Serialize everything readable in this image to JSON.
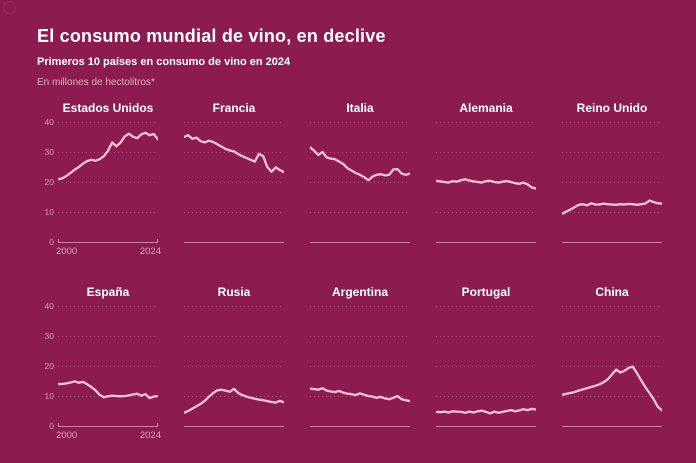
{
  "header": {
    "title": "El consumo mundial de vino, en declive",
    "subtitle": "Primeros 10 países en consumo de vino en 2024",
    "unit_note": "En millones de hectolitros*"
  },
  "colors": {
    "background": "#8C1C4F",
    "line": "#F5C3D8",
    "grid": "rgba(247,197,218,0.32)",
    "axis": "rgba(247,197,218,0.6)",
    "tick_text": "rgba(252,228,240,0.62)",
    "title_text": "#FFFFFF"
  },
  "chart_data": {
    "type": "line",
    "x_start": 2000,
    "x_end": 2024,
    "x_step": 1,
    "ylim": [
      0,
      40
    ],
    "yticks": [
      40,
      30,
      20,
      10,
      0
    ],
    "xtick_labels": [
      "2000",
      "2024"
    ],
    "grid": "dotted-horizontal",
    "legend": "none",
    "layout": "2 rows x 5 columns, axis labels only on first chart of each row",
    "ylabel": "millones de hectolitros",
    "charts": [
      {
        "title": "Estados Unidos",
        "values": [
          20.9,
          21.2,
          22.0,
          23.0,
          24.1,
          25.0,
          26.1,
          27.0,
          27.4,
          27.1,
          27.6,
          28.6,
          30.4,
          33.2,
          31.9,
          33.1,
          35.2,
          36.1,
          35.1,
          34.6,
          35.9,
          36.4,
          35.6,
          36.0,
          34.2
        ]
      },
      {
        "title": "Francia",
        "values": [
          35.0,
          35.6,
          34.4,
          34.8,
          33.6,
          33.2,
          33.8,
          33.3,
          32.6,
          31.8,
          31.0,
          30.5,
          30.2,
          29.3,
          28.6,
          28.0,
          27.4,
          26.8,
          29.4,
          28.6,
          25.0,
          23.4,
          24.9,
          24.0,
          23.3
        ]
      },
      {
        "title": "Italia",
        "values": [
          31.6,
          30.4,
          29.0,
          30.0,
          28.2,
          27.8,
          27.6,
          26.8,
          26.0,
          24.6,
          23.8,
          23.0,
          22.4,
          21.6,
          20.6,
          21.8,
          22.4,
          22.6,
          22.2,
          22.4,
          24.2,
          24.3,
          22.8,
          22.4,
          22.8
        ]
      },
      {
        "title": "Alemania",
        "values": [
          20.4,
          20.2,
          20.0,
          19.8,
          20.3,
          20.1,
          20.6,
          20.9,
          20.5,
          20.2,
          20.0,
          19.8,
          20.3,
          20.4,
          20.0,
          19.8,
          20.1,
          20.3,
          20.0,
          19.6,
          19.4,
          19.8,
          19.2,
          18.2,
          17.8
        ]
      },
      {
        "title": "Reino Unido",
        "values": [
          9.4,
          10.1,
          10.8,
          11.6,
          12.4,
          12.6,
          12.2,
          12.9,
          12.5,
          12.5,
          12.8,
          12.6,
          12.5,
          12.4,
          12.6,
          12.5,
          12.7,
          12.6,
          12.4,
          12.6,
          12.8,
          13.8,
          13.3,
          12.9,
          12.8
        ]
      },
      {
        "title": "España",
        "values": [
          14.0,
          14.0,
          14.2,
          14.5,
          14.9,
          14.4,
          14.7,
          13.9,
          13.0,
          11.9,
          10.4,
          9.6,
          9.9,
          10.1,
          10.0,
          9.9,
          10.0,
          10.2,
          10.5,
          10.8,
          10.1,
          10.6,
          9.3,
          9.8,
          10.0
        ]
      },
      {
        "title": "Rusia",
        "values": [
          4.4,
          5.0,
          5.8,
          6.6,
          7.4,
          8.4,
          9.8,
          11.0,
          11.9,
          12.1,
          11.8,
          11.4,
          12.4,
          11.0,
          10.3,
          9.8,
          9.4,
          9.1,
          8.8,
          8.6,
          8.3,
          8.0,
          7.8,
          8.4,
          7.9
        ]
      },
      {
        "title": "Argentina",
        "values": [
          12.5,
          12.3,
          12.1,
          12.6,
          11.8,
          11.5,
          11.3,
          11.7,
          11.1,
          10.8,
          10.6,
          10.3,
          10.9,
          10.4,
          10.0,
          9.8,
          9.4,
          9.7,
          9.2,
          8.9,
          9.4,
          10.0,
          8.9,
          8.6,
          8.3
        ]
      },
      {
        "title": "Portugal",
        "values": [
          4.7,
          4.6,
          4.8,
          4.5,
          4.9,
          4.8,
          4.7,
          4.4,
          4.8,
          4.5,
          4.9,
          5.1,
          4.7,
          4.2,
          4.8,
          4.4,
          4.7,
          5.0,
          5.3,
          4.9,
          5.2,
          5.6,
          5.3,
          5.7,
          5.5
        ]
      },
      {
        "title": "China",
        "values": [
          10.4,
          10.7,
          11.0,
          11.3,
          11.8,
          12.2,
          12.6,
          13.0,
          13.4,
          13.9,
          14.6,
          15.6,
          17.2,
          18.8,
          17.8,
          18.4,
          19.4,
          19.8,
          17.6,
          15.2,
          13.0,
          11.0,
          8.9,
          6.4,
          5.2
        ]
      }
    ]
  }
}
